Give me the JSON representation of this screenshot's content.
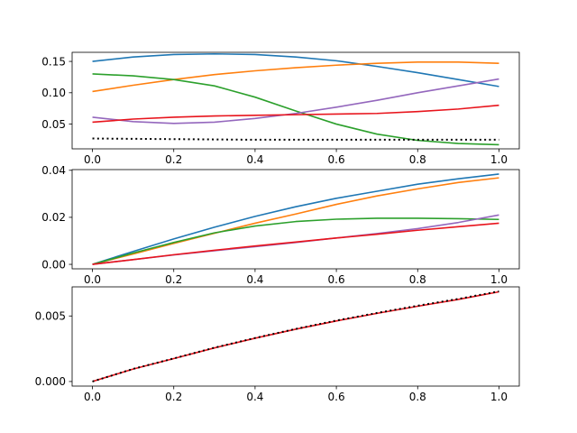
{
  "chart_data": [
    {
      "type": "line",
      "title": "",
      "xlabel": "",
      "ylabel": "",
      "xlim": [
        -0.05,
        1.05
      ],
      "ylim": [
        0.0105,
        0.1645
      ],
      "xticks": [
        0.0,
        0.2,
        0.4,
        0.6,
        0.8,
        1.0
      ],
      "xtick_labels": [
        "0.0",
        "0.2",
        "0.4",
        "0.6",
        "0.8",
        "1.0"
      ],
      "yticks": [
        0.05,
        0.1,
        0.15
      ],
      "ytick_labels": [
        "0.05",
        "0.10",
        "0.15"
      ],
      "grid": false,
      "series": [
        {
          "color": "#1f77b4",
          "style": "solid",
          "x": [
            0.0,
            0.1,
            0.2,
            0.3,
            0.4,
            0.5,
            0.6,
            0.7,
            0.8,
            0.9,
            1.0
          ],
          "y": [
            0.15,
            0.157,
            0.161,
            0.162,
            0.161,
            0.157,
            0.151,
            0.142,
            0.132,
            0.121,
            0.11
          ]
        },
        {
          "color": "#ff7f0e",
          "style": "solid",
          "x": [
            0.0,
            0.1,
            0.2,
            0.3,
            0.4,
            0.5,
            0.6,
            0.7,
            0.8,
            0.9,
            1.0
          ],
          "y": [
            0.102,
            0.112,
            0.121,
            0.129,
            0.135,
            0.14,
            0.144,
            0.147,
            0.149,
            0.149,
            0.147
          ]
        },
        {
          "color": "#2ca02c",
          "style": "solid",
          "x": [
            0.0,
            0.1,
            0.2,
            0.3,
            0.4,
            0.5,
            0.6,
            0.7,
            0.8,
            0.9,
            1.0
          ],
          "y": [
            0.13,
            0.127,
            0.121,
            0.111,
            0.093,
            0.071,
            0.05,
            0.034,
            0.024,
            0.019,
            0.017
          ]
        },
        {
          "color": "#9467bd",
          "style": "solid",
          "x": [
            0.0,
            0.1,
            0.2,
            0.3,
            0.4,
            0.5,
            0.6,
            0.7,
            0.8,
            0.9,
            1.0
          ],
          "y": [
            0.061,
            0.054,
            0.051,
            0.053,
            0.059,
            0.067,
            0.077,
            0.088,
            0.1,
            0.111,
            0.122
          ]
        },
        {
          "color": "#e8141c",
          "style": "solid",
          "x": [
            0.0,
            0.1,
            0.2,
            0.3,
            0.4,
            0.5,
            0.6,
            0.7,
            0.8,
            0.9,
            1.0
          ],
          "y": [
            0.053,
            0.058,
            0.061,
            0.063,
            0.064,
            0.065,
            0.066,
            0.067,
            0.07,
            0.074,
            0.08
          ]
        },
        {
          "color": "#000000",
          "style": "dotted",
          "x": [
            0.0,
            0.2,
            0.4,
            0.6,
            0.8,
            1.0
          ],
          "y": [
            0.027,
            0.026,
            0.025,
            0.025,
            0.025,
            0.025
          ]
        }
      ]
    },
    {
      "type": "line",
      "title": "",
      "xlabel": "",
      "ylabel": "",
      "xlim": [
        -0.05,
        1.05
      ],
      "ylim": [
        -0.0019,
        0.0403
      ],
      "xticks": [
        0.0,
        0.2,
        0.4,
        0.6,
        0.8,
        1.0
      ],
      "xtick_labels": [
        "0.0",
        "0.2",
        "0.4",
        "0.6",
        "0.8",
        "1.0"
      ],
      "yticks": [
        0.0,
        0.02,
        0.04
      ],
      "ytick_labels": [
        "0.00",
        "0.02",
        "0.04"
      ],
      "grid": false,
      "series": [
        {
          "color": "#1f77b4",
          "style": "solid",
          "x": [
            0.0,
            0.1,
            0.2,
            0.3,
            0.4,
            0.5,
            0.6,
            0.7,
            0.8,
            0.9,
            1.0
          ],
          "y": [
            0.0,
            0.0055,
            0.0108,
            0.0158,
            0.0204,
            0.0245,
            0.0281,
            0.0311,
            0.0341,
            0.0364,
            0.0384
          ]
        },
        {
          "color": "#ff7f0e",
          "style": "solid",
          "x": [
            0.0,
            0.1,
            0.2,
            0.3,
            0.4,
            0.5,
            0.6,
            0.7,
            0.8,
            0.9,
            1.0
          ],
          "y": [
            0.0,
            0.0044,
            0.0089,
            0.0132,
            0.0175,
            0.0214,
            0.0255,
            0.0291,
            0.0321,
            0.0348,
            0.0368
          ]
        },
        {
          "color": "#2ca02c",
          "style": "solid",
          "x": [
            0.0,
            0.1,
            0.2,
            0.3,
            0.4,
            0.5,
            0.6,
            0.7,
            0.8,
            0.9,
            1.0
          ],
          "y": [
            0.0,
            0.0048,
            0.0093,
            0.0134,
            0.0163,
            0.0182,
            0.0192,
            0.0196,
            0.0196,
            0.0194,
            0.0191
          ]
        },
        {
          "color": "#9467bd",
          "style": "solid",
          "x": [
            0.0,
            0.1,
            0.2,
            0.3,
            0.4,
            0.5,
            0.6,
            0.7,
            0.8,
            0.9,
            1.0
          ],
          "y": [
            0.0,
            0.002,
            0.004,
            0.0058,
            0.0075,
            0.0093,
            0.0112,
            0.0131,
            0.0152,
            0.0178,
            0.021
          ]
        },
        {
          "color": "#e8141c",
          "style": "solid",
          "x": [
            0.0,
            0.1,
            0.2,
            0.3,
            0.4,
            0.5,
            0.6,
            0.7,
            0.8,
            0.9,
            1.0
          ],
          "y": [
            0.0,
            0.002,
            0.0041,
            0.006,
            0.0078,
            0.0095,
            0.0112,
            0.0128,
            0.0145,
            0.016,
            0.0175
          ]
        }
      ]
    },
    {
      "type": "line",
      "title": "",
      "xlabel": "",
      "ylabel": "",
      "xlim": [
        -0.05,
        1.05
      ],
      "ylim": [
        -0.00035,
        0.00722
      ],
      "xticks": [
        0.0,
        0.2,
        0.4,
        0.6,
        0.8,
        1.0
      ],
      "xtick_labels": [
        "0.0",
        "0.2",
        "0.4",
        "0.6",
        "0.8",
        "1.0"
      ],
      "yticks": [
        0.0,
        0.005
      ],
      "ytick_labels": [
        "0.000",
        "0.005"
      ],
      "grid": false,
      "series": [
        {
          "color": "#e8141c",
          "style": "solid",
          "x": [
            0.0,
            0.1,
            0.2,
            0.3,
            0.4,
            0.5,
            0.6,
            0.7,
            0.8,
            0.9,
            1.0
          ],
          "y": [
            0.0,
            0.00095,
            0.00175,
            0.00256,
            0.0033,
            0.00399,
            0.00462,
            0.0052,
            0.00574,
            0.00626,
            0.00684
          ]
        },
        {
          "color": "#000000",
          "style": "dotted",
          "x": [
            0.0,
            0.1,
            0.2,
            0.3,
            0.4,
            0.5,
            0.6,
            0.7,
            0.8,
            0.9,
            1.0
          ],
          "y": [
            0.0,
            0.00096,
            0.00176,
            0.00258,
            0.00332,
            0.00401,
            0.00465,
            0.00523,
            0.00578,
            0.0063,
            0.00688
          ]
        }
      ]
    }
  ]
}
